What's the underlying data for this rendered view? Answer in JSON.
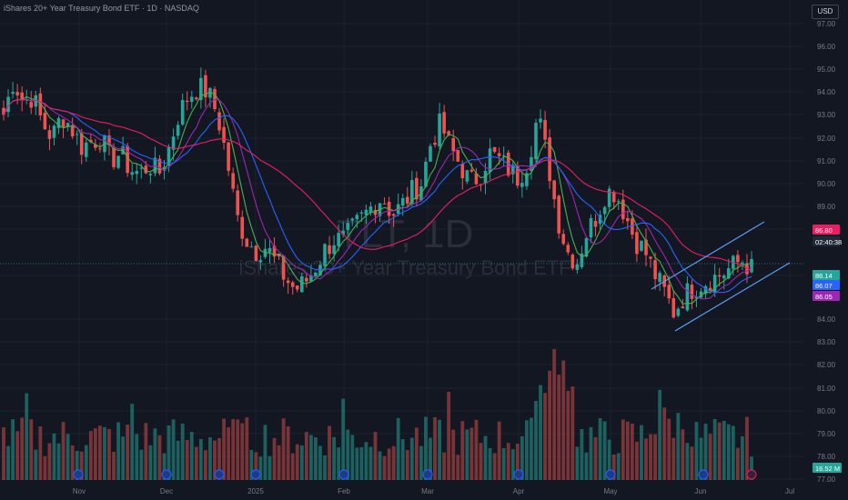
{
  "header": {
    "title": "iShares 20+ Year Treasury Bond ETF · 1D · NASDAQ",
    "currency": "USD"
  },
  "watermark": {
    "symbol": "TLT, 1D",
    "name": "iShares 20+ Year Treasury Bond ETF"
  },
  "colors": {
    "background": "#131722",
    "up": "#26a69a",
    "down": "#ef5350",
    "ma_fast": "#4caf50",
    "ma_mid": "#9c27b0",
    "ma_slow": "#2962ff",
    "ma_long": "#e91e63",
    "channel": "#5b9cf6"
  },
  "chart_data": {
    "type": "candlestick",
    "price_axis": {
      "ticks": [
        "97.00",
        "96.00",
        "95.00",
        "94.00",
        "93.00",
        "92.00",
        "91.00",
        "90.00",
        "89.00",
        "88.00",
        "86.00",
        "84.00",
        "83.00",
        "82.00",
        "81.00",
        "80.00",
        "79.00",
        "78.00",
        "77.00"
      ]
    },
    "time_axis": {
      "labels": [
        "Nov",
        "Dec",
        "2025",
        "Feb",
        "Mar",
        "Apr",
        "May",
        "Jun",
        "Jul"
      ]
    },
    "price_labels": [
      {
        "text": "86.80",
        "color": "#e91e63"
      },
      {
        "text": "02:40:38",
        "color": "#1f2a36"
      },
      {
        "text": "86.14",
        "color": "#26a69a"
      },
      {
        "text": "86.07",
        "color": "#2962ff"
      },
      {
        "text": "86.05",
        "color": "#9c27b0"
      }
    ],
    "volume_label": {
      "text": "16.52 M",
      "color": "#26a69a"
    },
    "ohlc_path": [
      93.0,
      94.5,
      93.6,
      93.8,
      92.6,
      92.0,
      93.0,
      92.4,
      91.6,
      91.8,
      92.0,
      91.0,
      91.3,
      90.6,
      90.4,
      90.8,
      90.4,
      91.5,
      93.0,
      93.8,
      94.2,
      94.0,
      93.0,
      91.0,
      88.5,
      87.5,
      87.0,
      87.2,
      86.5,
      85.8,
      85.3,
      85.6,
      86.2,
      87.0,
      87.5,
      87.5,
      88.0,
      88.5,
      89.0,
      89.4,
      88.6,
      89.0,
      89.6,
      90.0,
      91.8,
      92.6,
      91.5,
      90.8,
      90.0,
      90.3,
      91.3,
      91.0,
      90.6,
      90.2,
      91.0,
      93.0,
      91.0,
      88.5,
      87.0,
      86.5,
      87.8,
      88.5,
      89.6,
      89.6,
      88.6,
      87.5,
      87.0,
      86.0,
      85.2,
      84.3,
      85.0,
      85.4,
      85.6,
      85.8,
      86.0,
      86.3,
      86.6,
      86.2
    ]
  }
}
